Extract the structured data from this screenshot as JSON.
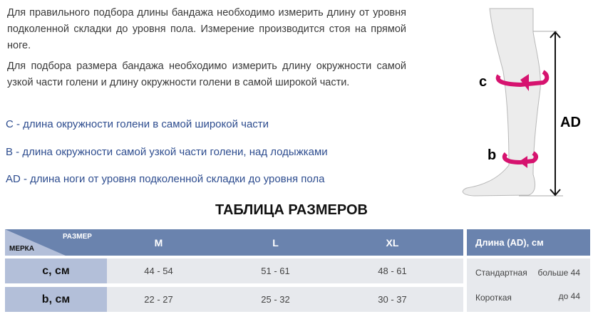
{
  "intro": {
    "paragraph1": "Для правильного подбора длины бандажа необходимо измерить длину от уровня подколенной складки до уровня пола. Измерение производится стоя на прямой ноге.",
    "paragraph2": "Для подбора размера бандажа необходимо измерить длину окружности самой узкой части голени и длину окружности  голени в самой широкой части."
  },
  "definitions": [
    "C - длина окружности голени в самой широкой части",
    "B - длина окружности самой узкой части голени, над лодыжками",
    "AD - длина ноги от уровня подколенной складки до уровня пола"
  ],
  "diagram": {
    "label_c": "c",
    "label_b": "b",
    "label_ad": "AD",
    "ring_color": "#d6136f"
  },
  "table": {
    "title": "ТАБЛИЦА РАЗМЕРОВ",
    "corner_top": "РАЗМЕР",
    "corner_bottom": "МЕРКА",
    "sizes": [
      "M",
      "L",
      "XL"
    ],
    "rows": [
      {
        "label": "c, см",
        "values": [
          "44 - 54",
          "51 - 61",
          "48 - 61"
        ]
      },
      {
        "label": "b, см",
        "values": [
          "22 - 27",
          "25 - 32",
          "30 - 37"
        ]
      }
    ],
    "length": {
      "header": "Длина (AD), см",
      "standard_label": "Стандартная",
      "standard_value": "больше 44",
      "short_label": "Короткая",
      "short_value": "до 44"
    }
  },
  "colors": {
    "header": "#6a83ae",
    "label_col": "#b3bfd9",
    "cell": "#e7e9ed",
    "definition_text": "#2e4d8f"
  }
}
